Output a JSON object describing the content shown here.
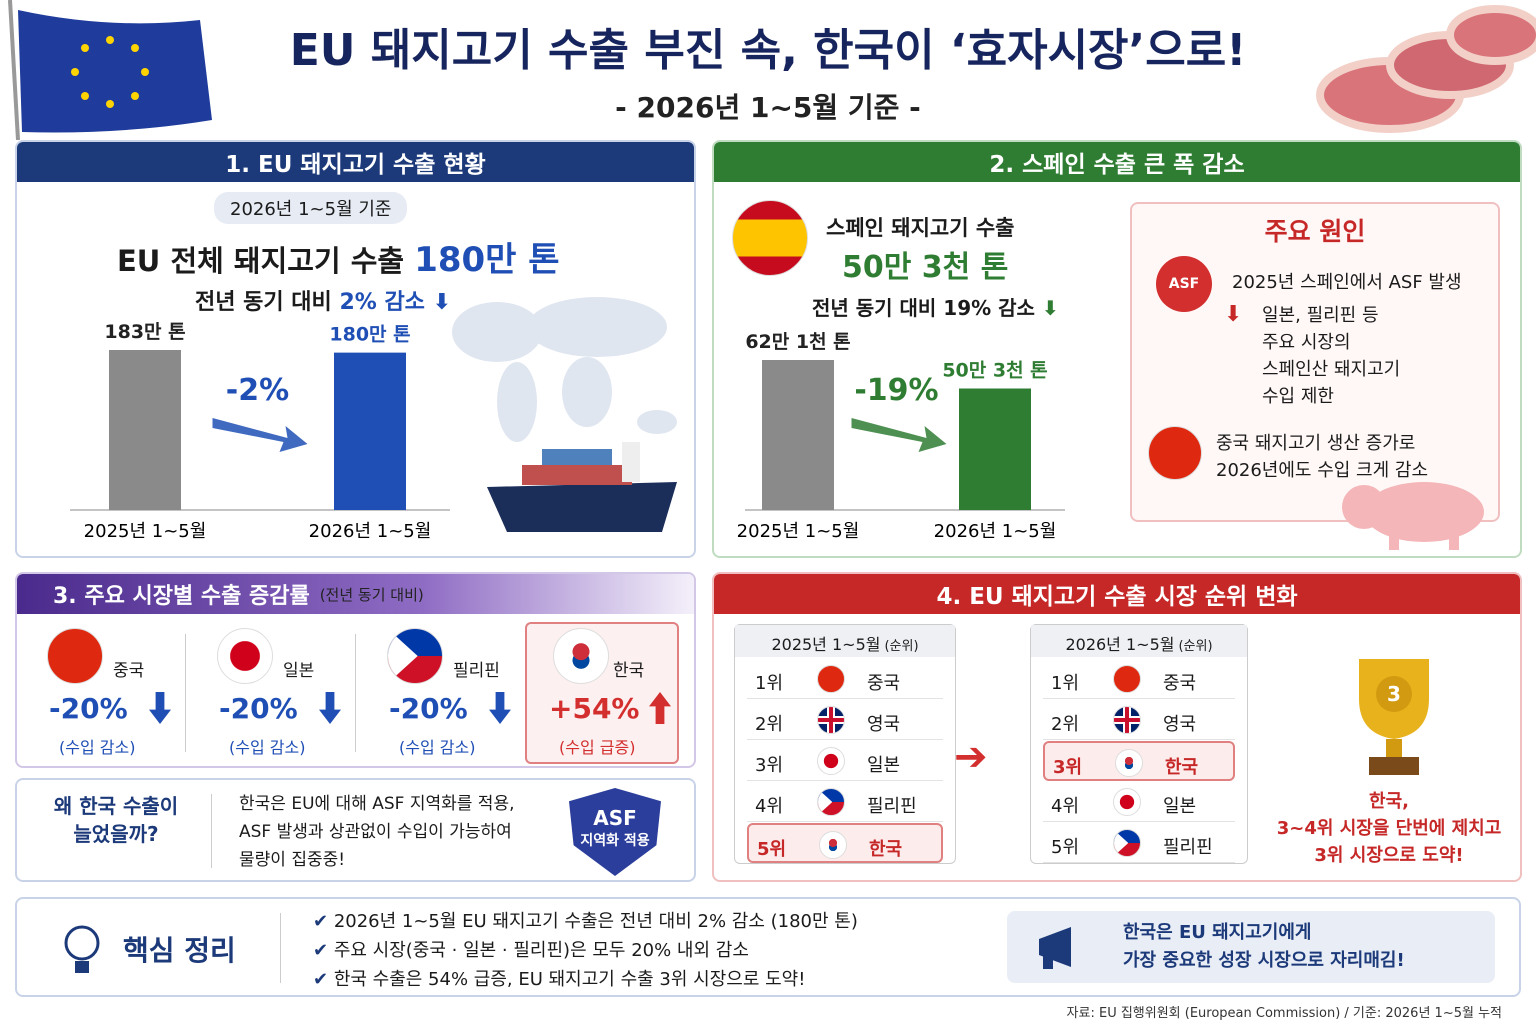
{
  "header": {
    "title": "EU 돼지고기 수출 부진 속, 한국이 ‘효자시장’으로!",
    "subtitle": "- 2026년 1~5월 기준 -"
  },
  "section1": {
    "title": "1. EU 돼지고기 수출 현황",
    "badge": "2026년 1~5월 기준",
    "headline": "EU 전체 돼지고기 수출",
    "headline_value": "180만 톤",
    "change_label": "전년 동기 대비",
    "change_value": "2% 감소",
    "chart": {
      "type": "bar",
      "categories": [
        "2025년 1~5월",
        "2026년 1~5월"
      ],
      "values": [
        183,
        180
      ],
      "value_labels": [
        "183만 톤",
        "180만 톤"
      ],
      "colors": [
        "#8a8a8a",
        "#1f4fb5"
      ],
      "change_label": "-2%"
    }
  },
  "section2": {
    "title": "2. 스페인 수출 큰 폭 감소",
    "headline": "스페인 돼지고기 수출",
    "headline_value": "50만 3천 톤",
    "change_text": "전년 동기 대비 19% 감소",
    "chart": {
      "type": "bar",
      "categories": [
        "2025년 1~5월",
        "2026년 1~5월"
      ],
      "values": [
        62.1,
        50.3
      ],
      "value_labels": [
        "62만 1천 톤",
        "50만 3천 톤"
      ],
      "colors": [
        "#8a8a8a",
        "#2e7d32"
      ],
      "change_label": "-19%"
    },
    "causes": {
      "title": "주요 원인",
      "badge": "ASF",
      "first": "2025년 스페인에서 ASF 발생",
      "second": [
        "일본, 필리핀 등",
        "주요 시장의",
        "스페인산 돼지고기",
        "수입 제한"
      ],
      "third": [
        "중국 돼지고기 생산 증가로",
        "2026년에도 수입 크게 감소"
      ]
    }
  },
  "section3": {
    "title": "3. 주요 시장별 수출 증감률",
    "note": "(전년 동기 대비)",
    "markets": [
      {
        "name": "중국",
        "value": -20,
        "value_label": "-20%",
        "note": "(수입 감소)"
      },
      {
        "name": "일본",
        "value": -20,
        "value_label": "-20%",
        "note": "(수입 감소)"
      },
      {
        "name": "필리핀",
        "value": -20,
        "value_label": "-20%",
        "note": "(수입 감소)"
      },
      {
        "name": "한국",
        "value": 54,
        "value_label": "+54%",
        "note": "(수입 급증)"
      }
    ]
  },
  "why": {
    "question": [
      "왜 한국 수출이",
      "늘었을까?"
    ],
    "text": [
      "한국은 EU에 대해 ASF 지역화를 적용,",
      "ASF 발생과 상관없이 수입이 가능하여",
      "물량이 집중중!"
    ],
    "badge": [
      "ASF",
      "지역화 적용"
    ]
  },
  "section4": {
    "title": "4. EU 돼지고기 수출 시장 순위 변화",
    "tables": [
      {
        "period": "2025년 1~5월",
        "note": "(순위)",
        "rows": [
          [
            "1위",
            "중국"
          ],
          [
            "2위",
            "영국"
          ],
          [
            "3위",
            "일본"
          ],
          [
            "4위",
            "필리핀"
          ],
          [
            "5위",
            "한국"
          ]
        ]
      },
      {
        "period": "2026년 1~5월",
        "note": "(순위)",
        "rows": [
          [
            "1위",
            "중국"
          ],
          [
            "2위",
            "영국"
          ],
          [
            "3위",
            "한국"
          ],
          [
            "4위",
            "일본"
          ],
          [
            "5위",
            "필리핀"
          ]
        ]
      }
    ],
    "trophy": "3",
    "highlight": [
      "한국,",
      "3~4위 시장을 단번에 제치고",
      "3위 시장으로 도약!"
    ]
  },
  "summary": {
    "title": "핵심 정리",
    "items": [
      "2026년 1~5월 EU 돼지고기 수출은 전년 대비 2% 감소 (180만 톤)",
      "주요 시장(중국 · 일본 · 필리핀)은 모두 20% 내외 감소",
      "한국 수출은 54% 급증, EU 돼지고기 수출 3위 시장으로 도약!"
    ],
    "callout": [
      "한국은 EU 돼지고기에게",
      "가장 중요한 성장 시장으로 자리매김!"
    ]
  },
  "footer": "자료: EU 집행위원회 (European Commission) / 기준: 2026년 1~5월 누적"
}
